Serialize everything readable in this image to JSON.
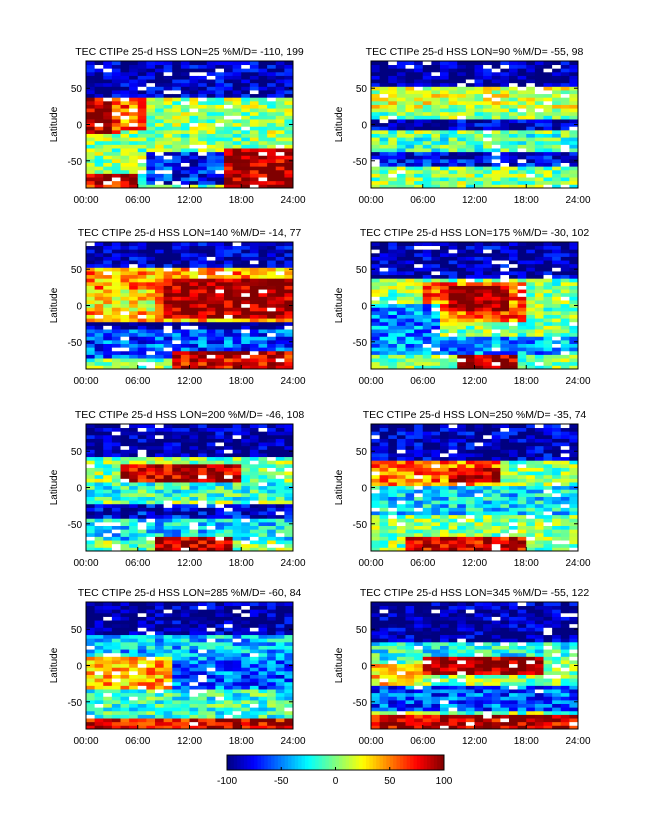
{
  "figure": {
    "xticks": [
      "00:00",
      "06:00",
      "12:00",
      "18:00",
      "24:00"
    ],
    "colorbar": {
      "ticks": [
        "-100",
        "-50",
        "0",
        "50",
        "100"
      ],
      "range": [
        -100,
        100
      ],
      "colormap": "jet"
    }
  },
  "chart_data": [
    {
      "type": "heatmap",
      "title": "TEC CTIPe 25-d HSS LON=25 %M/D= -110,  199",
      "ylabel": "Latitude",
      "yticks": [
        "50",
        "0",
        "-50"
      ],
      "xlim": [
        0,
        24
      ],
      "ylim": [
        -87.5,
        87.5
      ],
      "clim": [
        -100,
        100
      ],
      "x_unit": "UT hour",
      "y_unit": "deg latitude",
      "cells": {
        "x_step": 1,
        "y_step": 5
      },
      "features": [
        {
          "x": [
            0,
            24
          ],
          "y": [
            40,
            90
          ],
          "value": -90
        },
        {
          "x": [
            0,
            3.5
          ],
          "y": [
            -10,
            38
          ],
          "value": 92
        },
        {
          "x": [
            3.5,
            7
          ],
          "y": [
            -5,
            38
          ],
          "value": 55
        },
        {
          "x": [
            7,
            24
          ],
          "y": [
            -10,
            35
          ],
          "value": 5
        },
        {
          "x": [
            16,
            24
          ],
          "y": [
            -85,
            -35
          ],
          "value": 92
        },
        {
          "x": [
            7,
            16
          ],
          "y": [
            -80,
            -40
          ],
          "value": -70
        },
        {
          "x": [
            0,
            6
          ],
          "y": [
            -88,
            -70
          ],
          "value": 80
        }
      ]
    },
    {
      "type": "heatmap",
      "title": "TEC CTIPe 25-d HSS LON=90 %M/D=  -55,   98",
      "ylabel": "Latitude",
      "yticks": [
        "50",
        "0",
        "-50"
      ],
      "xlim": [
        0,
        24
      ],
      "ylim": [
        -87.5,
        87.5
      ],
      "clim": [
        -100,
        100
      ],
      "x_unit": "UT hour",
      "y_unit": "deg latitude",
      "cells": {
        "x_step": 1,
        "y_step": 5
      },
      "features": [
        {
          "x": [
            0,
            24
          ],
          "y": [
            55,
            90
          ],
          "value": -95
        },
        {
          "x": [
            0,
            24
          ],
          "y": [
            25,
            50
          ],
          "value": 15
        },
        {
          "x": [
            0,
            24
          ],
          "y": [
            -5,
            5
          ],
          "value": -90
        },
        {
          "x": [
            0,
            24
          ],
          "y": [
            -35,
            -15
          ],
          "value": -10
        },
        {
          "x": [
            0,
            24
          ],
          "y": [
            -55,
            -40
          ],
          "value": -75
        },
        {
          "x": [
            0,
            24
          ],
          "y": [
            -88,
            -60
          ],
          "value": 0
        }
      ]
    },
    {
      "type": "heatmap",
      "title": "TEC CTIPe 25-d HSS LON=140 %M/D=  -14,   77",
      "ylabel": "Latitude",
      "yticks": [
        "50",
        "0",
        "-50"
      ],
      "xlim": [
        0,
        24
      ],
      "ylim": [
        -87.5,
        87.5
      ],
      "clim": [
        -100,
        100
      ],
      "x_unit": "UT hour",
      "y_unit": "deg latitude",
      "cells": {
        "x_step": 1,
        "y_step": 5
      },
      "features": [
        {
          "x": [
            0,
            24
          ],
          "y": [
            55,
            90
          ],
          "value": -90
        },
        {
          "x": [
            0,
            24
          ],
          "y": [
            -20,
            50
          ],
          "value": 45
        },
        {
          "x": [
            9,
            24
          ],
          "y": [
            -15,
            35
          ],
          "value": 95
        },
        {
          "x": [
            0,
            8
          ],
          "y": [
            -5,
            20
          ],
          "value": 25
        },
        {
          "x": [
            0,
            24
          ],
          "y": [
            -30,
            -25
          ],
          "value": -100
        },
        {
          "x": [
            0,
            24
          ],
          "y": [
            -70,
            -35
          ],
          "value": -60
        },
        {
          "x": [
            10,
            24
          ],
          "y": [
            -88,
            -65
          ],
          "value": 80
        }
      ]
    },
    {
      "type": "heatmap",
      "title": "TEC CTIPe 25-d HSS LON=175 %M/D=  -30,  102",
      "ylabel": "Latitude",
      "yticks": [
        "50",
        "0",
        "-50"
      ],
      "xlim": [
        0,
        24
      ],
      "ylim": [
        -87.5,
        87.5
      ],
      "clim": [
        -100,
        100
      ],
      "x_unit": "UT hour",
      "y_unit": "deg latitude",
      "cells": {
        "x_step": 1,
        "y_step": 5
      },
      "features": [
        {
          "x": [
            0,
            24
          ],
          "y": [
            40,
            90
          ],
          "value": -90
        },
        {
          "x": [
            6,
            18
          ],
          "y": [
            -20,
            30
          ],
          "value": 55
        },
        {
          "x": [
            9,
            16
          ],
          "y": [
            -5,
            25
          ],
          "value": 100
        },
        {
          "x": [
            0,
            8
          ],
          "y": [
            -40,
            0
          ],
          "value": -50
        },
        {
          "x": [
            0,
            24
          ],
          "y": [
            -65,
            -45
          ],
          "value": -45
        },
        {
          "x": [
            10,
            17
          ],
          "y": [
            -88,
            -70
          ],
          "value": 90
        }
      ]
    },
    {
      "type": "heatmap",
      "title": "TEC CTIPe 25-d HSS LON=200 %M/D=  -46,  108",
      "ylabel": "Latitude",
      "yticks": [
        "50",
        "0",
        "-50"
      ],
      "xlim": [
        0,
        24
      ],
      "ylim": [
        -87.5,
        87.5
      ],
      "clim": [
        -100,
        100
      ],
      "x_unit": "UT hour",
      "y_unit": "deg latitude",
      "cells": {
        "x_step": 1,
        "y_step": 5
      },
      "features": [
        {
          "x": [
            0,
            24
          ],
          "y": [
            45,
            90
          ],
          "value": -95
        },
        {
          "x": [
            4,
            18
          ],
          "y": [
            5,
            30
          ],
          "value": 85
        },
        {
          "x": [
            0,
            24
          ],
          "y": [
            -15,
            5
          ],
          "value": -15
        },
        {
          "x": [
            0,
            24
          ],
          "y": [
            -40,
            -25
          ],
          "value": -80
        },
        {
          "x": [
            0,
            24
          ],
          "y": [
            -70,
            -45
          ],
          "value": -30
        },
        {
          "x": [
            8,
            17
          ],
          "y": [
            -88,
            -70
          ],
          "value": 90
        }
      ]
    },
    {
      "type": "heatmap",
      "title": "TEC CTIPe 25-d HSS LON=250 %M/D=  -35,   74",
      "ylabel": "Latitude",
      "yticks": [
        "50",
        "0",
        "-50"
      ],
      "xlim": [
        0,
        24
      ],
      "ylim": [
        -87.5,
        87.5
      ],
      "clim": [
        -100,
        100
      ],
      "x_unit": "UT hour",
      "y_unit": "deg latitude",
      "cells": {
        "x_step": 1,
        "y_step": 5
      },
      "features": [
        {
          "x": [
            0,
            24
          ],
          "y": [
            40,
            90
          ],
          "value": -90
        },
        {
          "x": [
            0,
            15
          ],
          "y": [
            5,
            35
          ],
          "value": 50
        },
        {
          "x": [
            9,
            15
          ],
          "y": [
            10,
            25
          ],
          "value": 90
        },
        {
          "x": [
            0,
            24
          ],
          "y": [
            -35,
            0
          ],
          "value": -30
        },
        {
          "x": [
            0,
            24
          ],
          "y": [
            -65,
            -40
          ],
          "value": 0
        },
        {
          "x": [
            4,
            18
          ],
          "y": [
            -88,
            -70
          ],
          "value": 85
        }
      ]
    },
    {
      "type": "heatmap",
      "title": "TEC CTIPe 25-d HSS LON=285 %M/D=  -60,   84",
      "ylabel": "Latitude",
      "yticks": [
        "50",
        "0",
        "-50"
      ],
      "xlim": [
        0,
        24
      ],
      "ylim": [
        -87.5,
        87.5
      ],
      "clim": [
        -100,
        100
      ],
      "x_unit": "UT hour",
      "y_unit": "deg latitude",
      "cells": {
        "x_step": 1,
        "y_step": 5
      },
      "features": [
        {
          "x": [
            0,
            24
          ],
          "y": [
            45,
            90
          ],
          "value": -95
        },
        {
          "x": [
            0,
            24
          ],
          "y": [
            10,
            40
          ],
          "value": -35
        },
        {
          "x": [
            0,
            10
          ],
          "y": [
            -30,
            10
          ],
          "value": 40
        },
        {
          "x": [
            10,
            24
          ],
          "y": [
            -30,
            5
          ],
          "value": -55
        },
        {
          "x": [
            0,
            24
          ],
          "y": [
            -70,
            -35
          ],
          "value": -15
        },
        {
          "x": [
            0,
            24
          ],
          "y": [
            -88,
            -75
          ],
          "value": 80
        }
      ]
    },
    {
      "type": "heatmap",
      "title": "TEC CTIPe 25-d HSS LON=345 %M/D=  -55,  122",
      "ylabel": "Latitude",
      "yticks": [
        "50",
        "0",
        "-50"
      ],
      "xlim": [
        0,
        24
      ],
      "ylim": [
        -87.5,
        87.5
      ],
      "clim": [
        -100,
        100
      ],
      "x_unit": "UT hour",
      "y_unit": "deg latitude",
      "cells": {
        "x_step": 1,
        "y_step": 5
      },
      "features": [
        {
          "x": [
            0,
            24
          ],
          "y": [
            35,
            90
          ],
          "value": -95
        },
        {
          "x": [
            0,
            24
          ],
          "y": [
            10,
            30
          ],
          "value": -20
        },
        {
          "x": [
            6,
            20
          ],
          "y": [
            -10,
            10
          ],
          "value": 95
        },
        {
          "x": [
            0,
            6
          ],
          "y": [
            -30,
            0
          ],
          "value": 30
        },
        {
          "x": [
            0,
            24
          ],
          "y": [
            -60,
            -30
          ],
          "value": -60
        },
        {
          "x": [
            0,
            24
          ],
          "y": [
            -88,
            -70
          ],
          "value": 85
        }
      ]
    }
  ]
}
